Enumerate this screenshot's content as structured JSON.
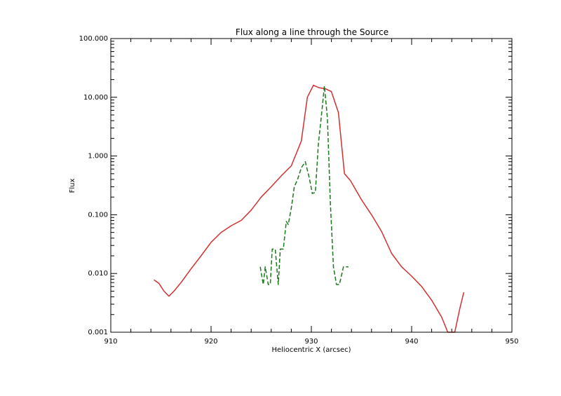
{
  "chart_data": {
    "type": "line",
    "title": "Flux along a line through the Source",
    "xlabel": "Heliocentric X (arcsec)",
    "ylabel": "Flux",
    "xlim": [
      910,
      950
    ],
    "ylim": [
      0.001,
      100
    ],
    "yscale": "log",
    "grid": false,
    "x_ticks": [
      910,
      920,
      930,
      940,
      950
    ],
    "y_ticks": [
      0.001,
      0.01,
      0.1,
      1,
      10,
      100
    ],
    "x_tick_labels": [
      "910",
      "920",
      "930",
      "940",
      "950"
    ],
    "y_tick_labels": [
      "0.001",
      "0.010",
      "0.100",
      "1.000",
      "10.000",
      "100.000"
    ],
    "series": [
      {
        "color": "#d03030",
        "dash": "solid",
        "x": [
          914.3,
          914.8,
          915.3,
          915.8,
          916.3,
          917.0,
          918.0,
          919.0,
          920.0,
          921.0,
          922.0,
          923.0,
          924.0,
          925.0,
          926.0,
          927.0,
          928.0,
          929.0,
          929.6,
          930.2,
          930.8,
          931.4,
          932.0,
          932.7,
          933.3,
          933.9,
          935.0,
          936.0,
          937.0,
          938.0,
          939.0,
          940.0,
          941.0,
          942.0,
          943.0,
          943.6,
          944.3,
          944.8,
          945.2
        ],
        "y": [
          0.0078,
          0.0068,
          0.005,
          0.0041,
          0.005,
          0.007,
          0.012,
          0.02,
          0.034,
          0.05,
          0.065,
          0.08,
          0.12,
          0.2,
          0.3,
          0.46,
          0.68,
          1.8,
          10,
          16,
          14.5,
          14,
          12.5,
          5.5,
          0.5,
          0.38,
          0.18,
          0.1,
          0.052,
          0.022,
          0.013,
          0.009,
          0.006,
          0.0035,
          0.0018,
          0.001,
          0.001,
          0.0025,
          0.0048
        ]
      },
      {
        "color": "#1a7a1a",
        "dash": "dashed",
        "x": [
          924.9,
          925.2,
          925.4,
          925.7,
          925.9,
          926.1,
          926.4,
          926.7,
          926.9,
          927.2,
          927.5,
          927.7,
          928.0,
          928.3,
          928.6,
          929.0,
          929.4,
          929.8,
          930.1,
          930.4,
          930.7,
          931.0,
          931.3,
          931.6,
          931.9,
          932.2,
          932.5,
          932.8,
          933.2,
          933.7
        ],
        "y": [
          0.013,
          0.0065,
          0.013,
          0.0065,
          0.0065,
          0.026,
          0.026,
          0.0065,
          0.026,
          0.026,
          0.077,
          0.068,
          0.13,
          0.3,
          0.39,
          0.63,
          0.8,
          0.42,
          0.23,
          0.24,
          1.6,
          4.8,
          15.6,
          4.4,
          0.15,
          0.013,
          0.0065,
          0.0065,
          0.013,
          0.013
        ]
      }
    ]
  }
}
